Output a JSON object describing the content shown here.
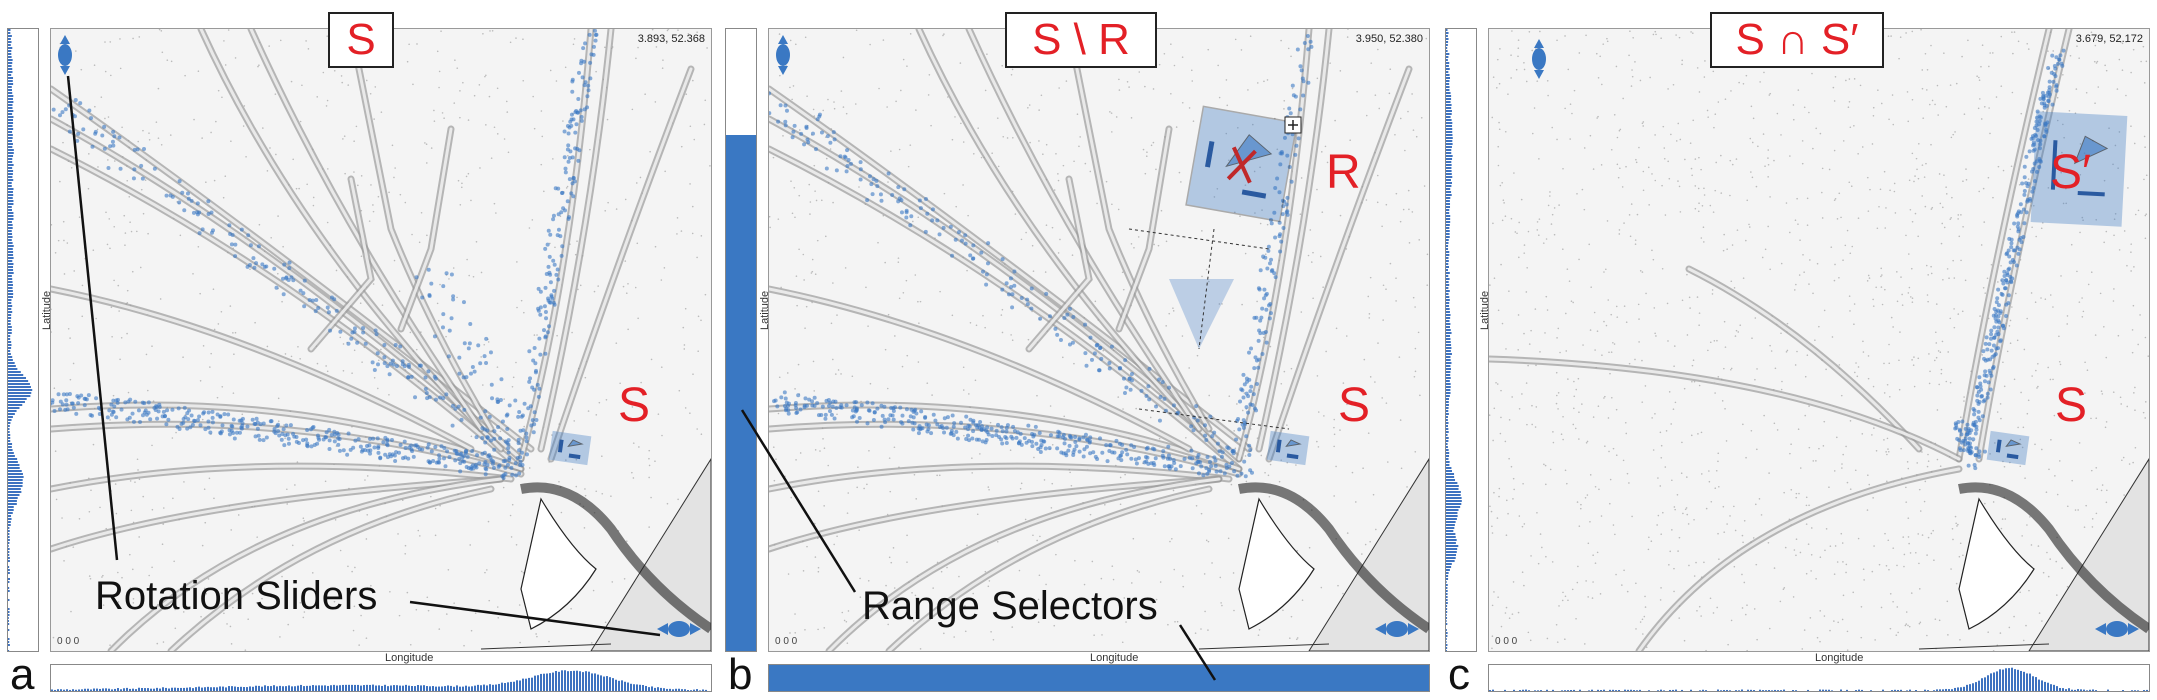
{
  "panels": [
    {
      "letter": "a",
      "title": "S",
      "coord": "3.893, 52.368",
      "zoom": "0 0 0",
      "lat_label": "Latitude",
      "lon_label": "Longitude",
      "region_label": "S"
    },
    {
      "letter": "b",
      "title": "S \\ R",
      "coord": "3.950, 52.380",
      "zoom": "0 0 0",
      "lat_label": "Latitude",
      "lon_label": "Longitude",
      "region_label": "S",
      "extra_label": "R",
      "range_fill": 0.83
    },
    {
      "letter": "c",
      "title": "S ∩ S′",
      "coord": "3.679, 52.172",
      "zoom": "0 0 0",
      "lat_label": "Latitude",
      "lon_label": "Longitude",
      "region_label": "S",
      "extra_label": "S′"
    }
  ],
  "annotations": {
    "rotation": "Rotation Sliders",
    "range": "Range Selectors"
  },
  "colors": {
    "accent": "#3a78c3",
    "label_red": "#e32026",
    "histogram": "#3d72c0"
  }
}
